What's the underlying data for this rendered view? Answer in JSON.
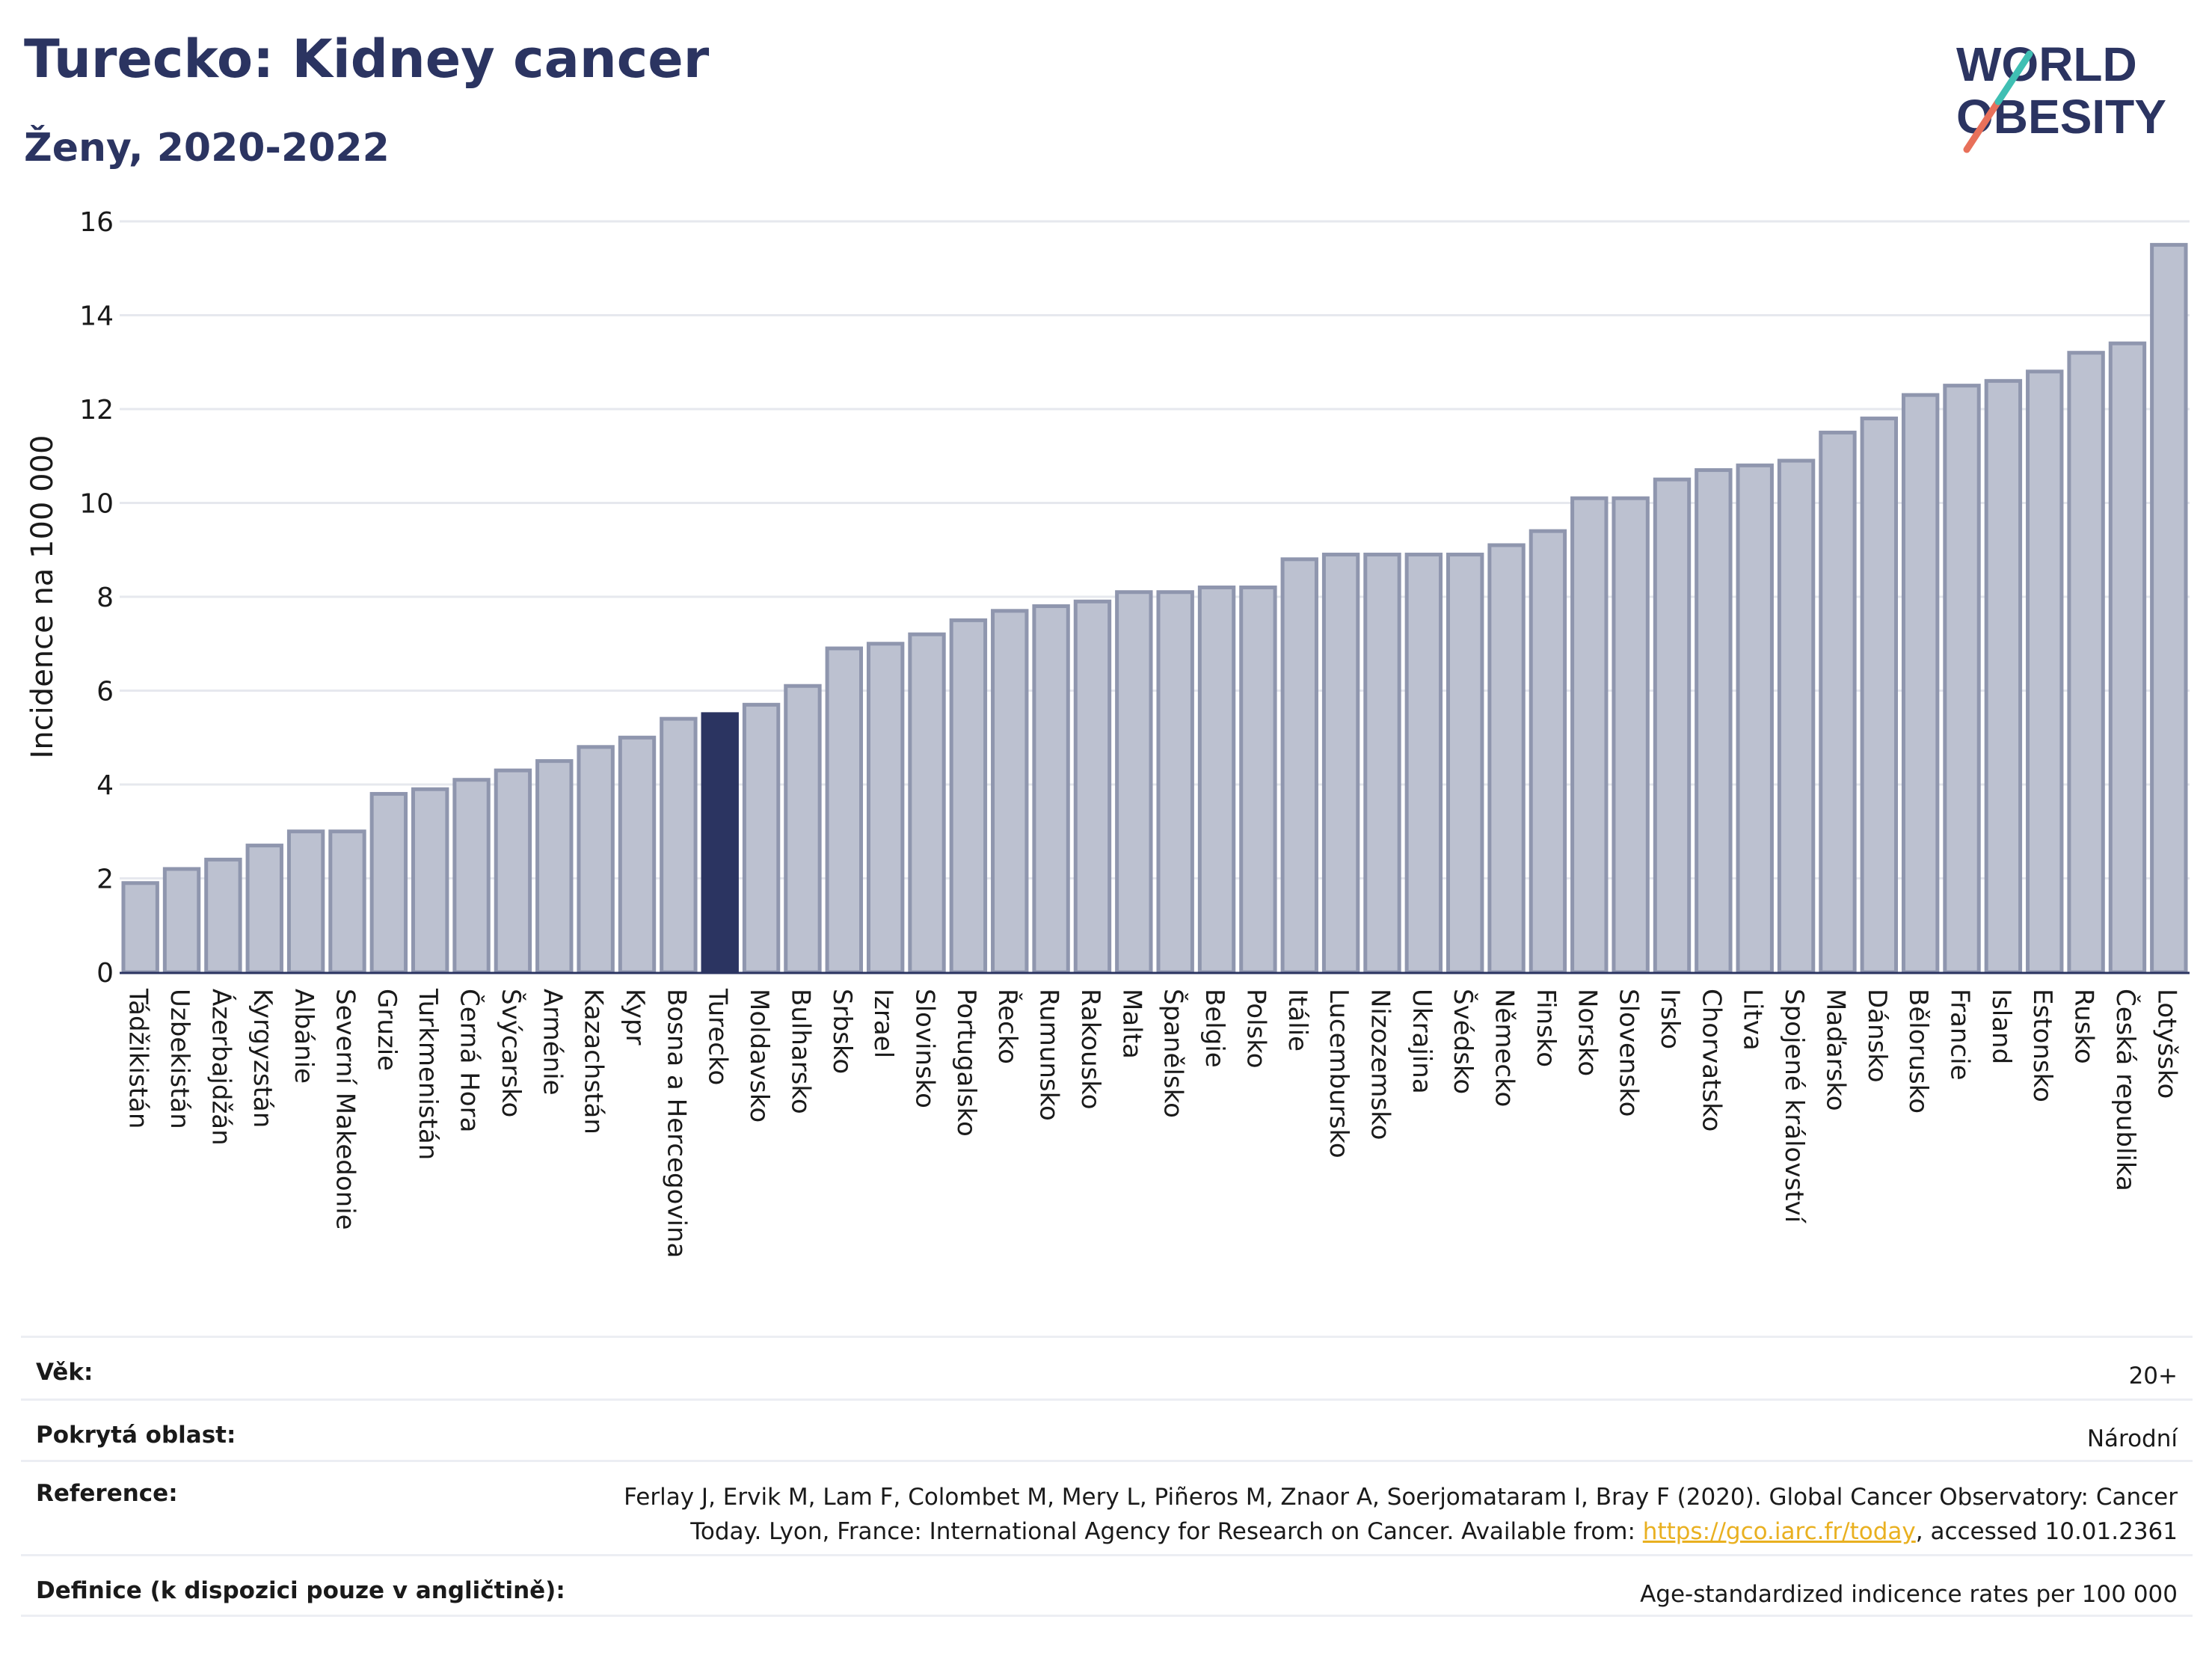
{
  "header": {
    "title": "Turecko: Kidney cancer",
    "subtitle": "Ženy, 2020-2022",
    "logo_line1": "WORLD",
    "logo_line2": "OBESITY"
  },
  "colors": {
    "bar": "#bcc1d0",
    "bar_stroke": "#8f96ae",
    "highlight": "#2b3461",
    "grid": "#e6e8ee",
    "text": "#2b3461"
  },
  "chart_data": {
    "type": "bar",
    "ylabel": "Incidence na 100 000",
    "ylim": [
      0,
      16
    ],
    "yticks": [
      0,
      2,
      4,
      6,
      8,
      10,
      12,
      14,
      16
    ],
    "grid": true,
    "highlight": "Turecko",
    "categories": [
      "Tádžikistán",
      "Uzbekistán",
      "Ázerbajdžán",
      "Kyrgyzstán",
      "Albánie",
      "Severní Makedonie",
      "Gruzie",
      "Turkmenistán",
      "Černá Hora",
      "Švýcarsko",
      "Arménie",
      "Kazachstán",
      "Kypr",
      "Bosna a Hercegovina",
      "Turecko",
      "Moldavsko",
      "Bulharsko",
      "Srbsko",
      "Izrael",
      "Slovinsko",
      "Portugalsko",
      "Řecko",
      "Rumunsko",
      "Rakousko",
      "Malta",
      "Španělsko",
      "Belgie",
      "Polsko",
      "Itálie",
      "Lucembursko",
      "Nizozemsko",
      "Ukrajina",
      "Švédsko",
      "Německo",
      "Finsko",
      "Norsko",
      "Slovensko",
      "Irsko",
      "Chorvatsko",
      "Litva",
      "Spojené království",
      "Maďarsko",
      "Dánsko",
      "Bělorusko",
      "Francie",
      "Island",
      "Estonsko",
      "Rusko",
      "Česká republika",
      "Lotyšsko"
    ],
    "values": [
      1.9,
      2.2,
      2.4,
      2.7,
      3.0,
      3.0,
      3.8,
      3.9,
      4.1,
      4.3,
      4.5,
      4.8,
      5.0,
      5.4,
      5.5,
      5.7,
      6.1,
      6.9,
      7.0,
      7.2,
      7.5,
      7.7,
      7.8,
      7.9,
      8.1,
      8.1,
      8.2,
      8.2,
      8.8,
      8.9,
      8.9,
      8.9,
      8.9,
      9.1,
      9.4,
      10.1,
      10.1,
      10.5,
      10.7,
      10.8,
      10.9,
      11.5,
      11.8,
      12.3,
      12.5,
      12.6,
      12.8,
      13.2,
      13.4,
      15.5
    ]
  },
  "info": [
    {
      "label": "Věk:",
      "value": "20+"
    },
    {
      "label": "Pokrytá oblast:",
      "value": "Národní"
    },
    {
      "label": "Reference:",
      "value_line1": "Ferlay J, Ervik M, Lam F, Colombet M, Mery L, Piñeros M, Znaor A, Soerjomataram I, Bray F (2020). Global Cancer Observatory: Cancer",
      "value_line2_pre": "Today. Lyon, France: International Agency for Research on Cancer. Available from: ",
      "link": "https://gco.iarc.fr/today",
      "value_line2_post": ", accessed 10.01.2361"
    },
    {
      "label": "Definice (k dispozici pouze v angličtině):",
      "value": "Age-standardized indicence rates per 100 000"
    }
  ]
}
